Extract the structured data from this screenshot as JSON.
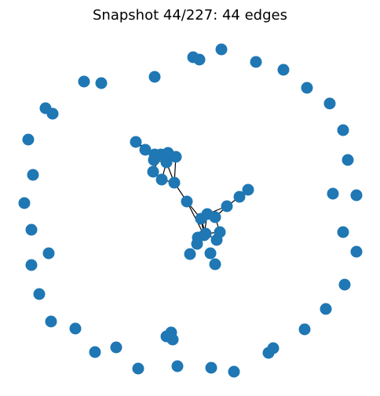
{
  "figure": {
    "title": "Snapshot 44/227: 44 edges",
    "node_color": "#1f77b4",
    "edge_color": "#000000",
    "background": "#ffffff"
  },
  "graph": {
    "nodes_isolated_ring": 44,
    "nodes_in_clusters": 31,
    "edges_drawn": 44
  }
}
